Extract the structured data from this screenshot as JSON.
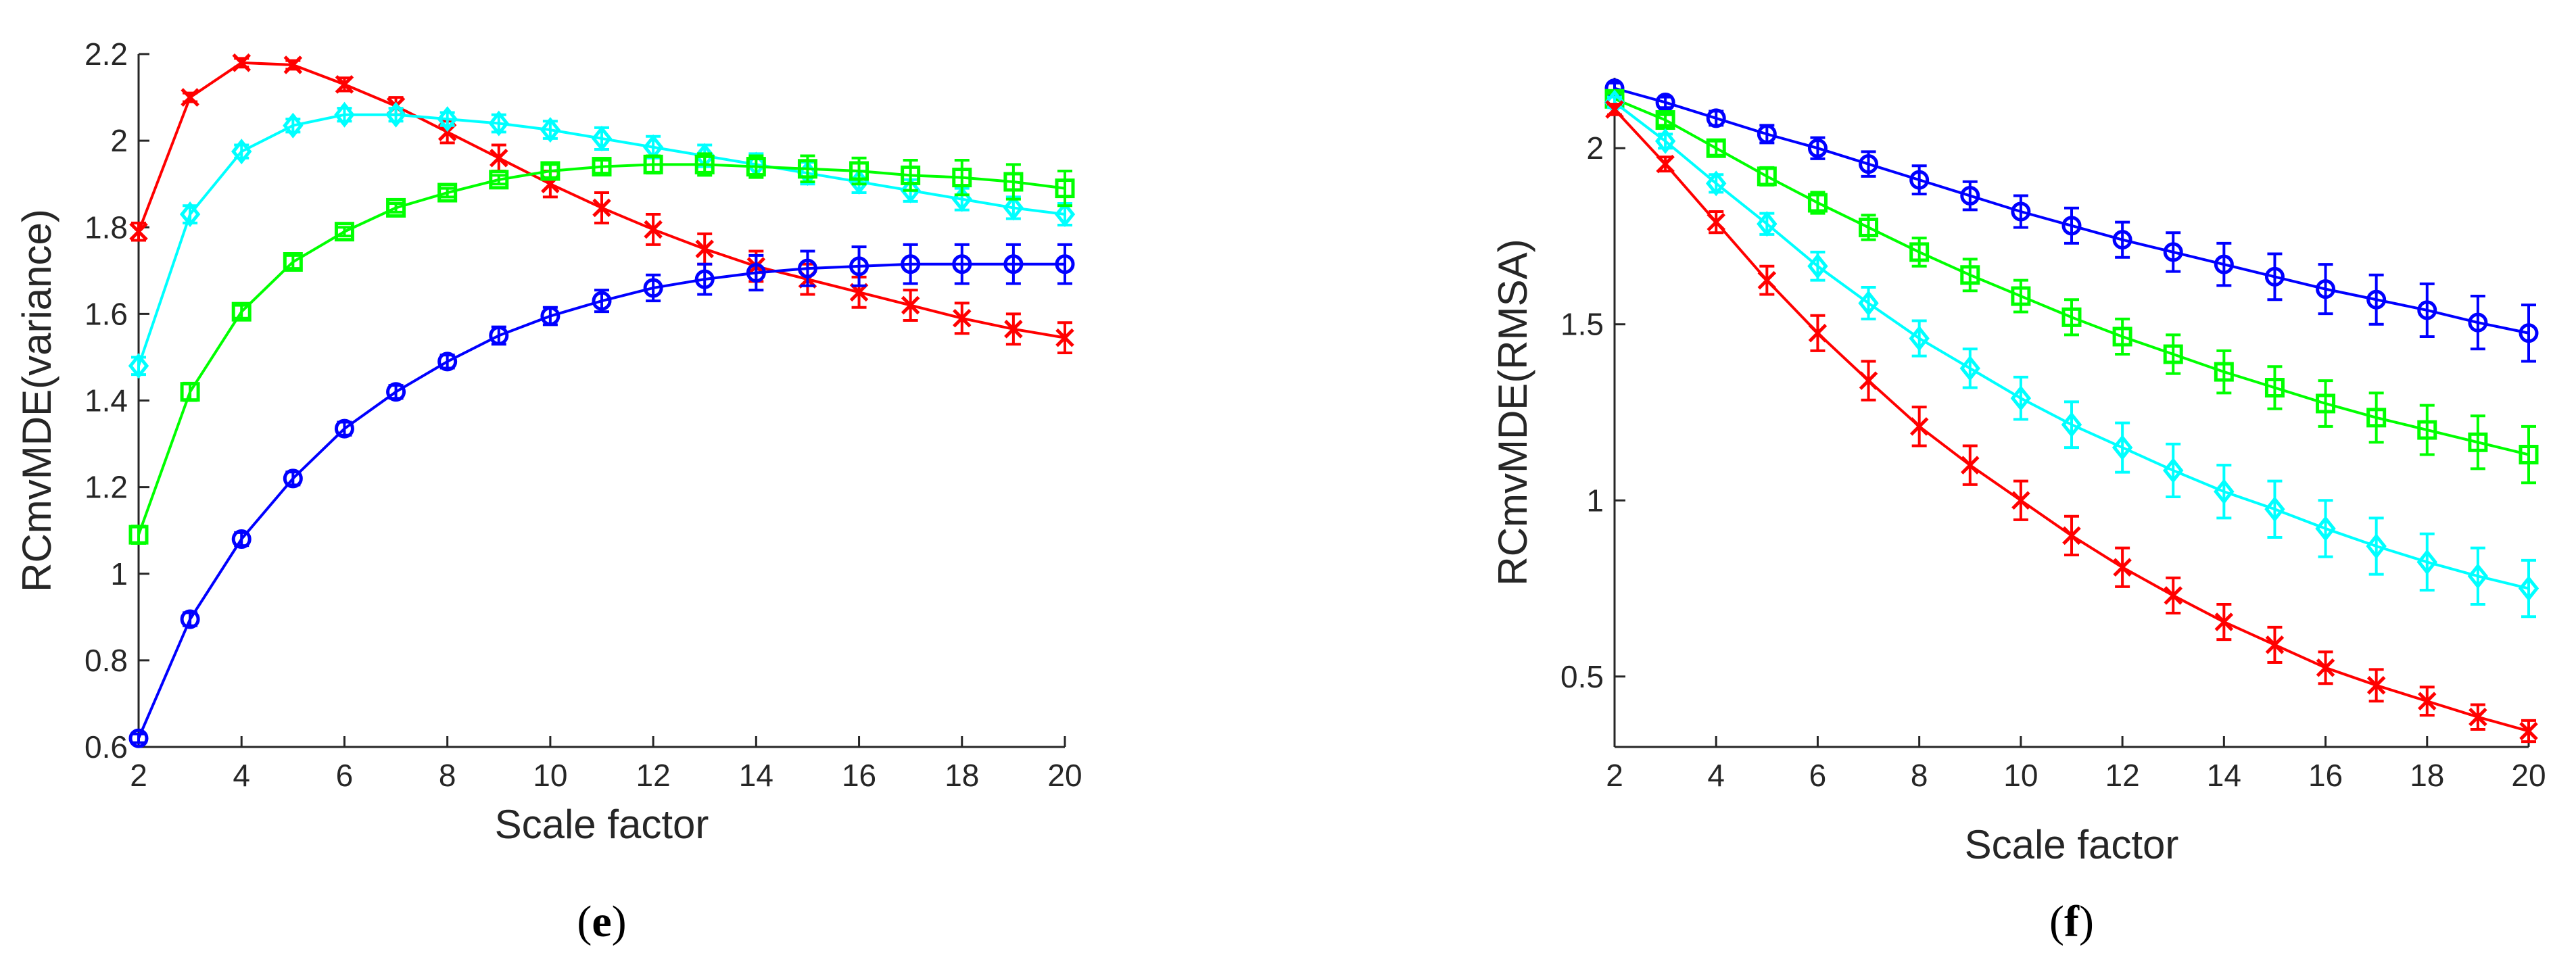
{
  "chart_data": [
    {
      "type": "line",
      "panel_label": "e",
      "xlabel": "Scale factor",
      "ylabel": "RCmvMDE(variance)",
      "xlim": [
        2,
        20
      ],
      "ylim": [
        0.6,
        2.2
      ],
      "xticks": [
        2,
        4,
        6,
        8,
        10,
        12,
        14,
        16,
        18,
        20
      ],
      "yticks": [
        0.6,
        0.8,
        1,
        1.2,
        1.4,
        1.6,
        1.8,
        2,
        2.2
      ],
      "grid": false,
      "legend": "none",
      "x": [
        2,
        3,
        4,
        5,
        6,
        7,
        8,
        9,
        10,
        11,
        12,
        13,
        14,
        15,
        16,
        17,
        18,
        19,
        20
      ],
      "series": [
        {
          "color": "#ff0000",
          "marker": "x",
          "values": [
            1.79,
            2.1,
            2.18,
            2.175,
            2.13,
            2.08,
            2.02,
            1.96,
            1.9,
            1.845,
            1.795,
            1.75,
            1.71,
            1.68,
            1.65,
            1.62,
            1.59,
            1.565,
            1.545
          ],
          "errors": [
            0.02,
            0.01,
            0.01,
            0.01,
            0.015,
            0.02,
            0.025,
            0.03,
            0.03,
            0.035,
            0.035,
            0.035,
            0.035,
            0.035,
            0.035,
            0.035,
            0.035,
            0.035,
            0.035
          ]
        },
        {
          "color": "#00ffff",
          "marker": "diamond",
          "values": [
            1.48,
            1.83,
            1.975,
            2.035,
            2.06,
            2.06,
            2.05,
            2.04,
            2.025,
            2.005,
            1.985,
            1.965,
            1.945,
            1.925,
            1.905,
            1.885,
            1.865,
            1.845,
            1.83
          ],
          "errors": [
            0.02,
            0.02,
            0.015,
            0.015,
            0.015,
            0.015,
            0.015,
            0.02,
            0.02,
            0.025,
            0.025,
            0.025,
            0.025,
            0.025,
            0.025,
            0.025,
            0.025,
            0.025,
            0.025
          ]
        },
        {
          "color": "#00ff00",
          "marker": "square",
          "values": [
            1.09,
            1.42,
            1.605,
            1.72,
            1.79,
            1.845,
            1.88,
            1.91,
            1.93,
            1.94,
            1.945,
            1.945,
            1.94,
            1.935,
            1.93,
            1.92,
            1.915,
            1.905,
            1.89
          ],
          "errors": [
            0.02,
            0.02,
            0.015,
            0.015,
            0.01,
            0.01,
            0.01,
            0.01,
            0.015,
            0.015,
            0.02,
            0.025,
            0.025,
            0.03,
            0.03,
            0.035,
            0.04,
            0.04,
            0.04
          ]
        },
        {
          "color": "#0000ff",
          "marker": "circle",
          "values": [
            0.62,
            0.895,
            1.08,
            1.22,
            1.335,
            1.42,
            1.49,
            1.55,
            1.595,
            1.63,
            1.66,
            1.68,
            1.695,
            1.705,
            1.71,
            1.715,
            1.715,
            1.715,
            1.715
          ],
          "errors": [
            0.01,
            0.015,
            0.015,
            0.015,
            0.015,
            0.015,
            0.015,
            0.02,
            0.02,
            0.025,
            0.03,
            0.035,
            0.04,
            0.04,
            0.045,
            0.045,
            0.045,
            0.045,
            0.045
          ]
        }
      ]
    },
    {
      "type": "line",
      "panel_label": "f",
      "xlabel": "Scale factor",
      "ylabel": "RCmvMDE(RMSA)",
      "xlim": [
        2,
        20
      ],
      "ylim": [
        0.3,
        2.2
      ],
      "xticks": [
        2,
        4,
        6,
        8,
        10,
        12,
        14,
        16,
        18,
        20
      ],
      "yticks": [
        0.5,
        1,
        1.5,
        2
      ],
      "grid": false,
      "legend": "none",
      "x": [
        2,
        3,
        4,
        5,
        6,
        7,
        8,
        9,
        10,
        11,
        12,
        13,
        14,
        15,
        16,
        17,
        18,
        19,
        20
      ],
      "series": [
        {
          "color": "#0000ff",
          "marker": "circle",
          "values": [
            2.17,
            2.13,
            2.085,
            2.04,
            2.0,
            1.955,
            1.91,
            1.865,
            1.82,
            1.78,
            1.74,
            1.705,
            1.67,
            1.635,
            1.6,
            1.57,
            1.54,
            1.505,
            1.475
          ],
          "errors": [
            0.015,
            0.015,
            0.02,
            0.025,
            0.03,
            0.035,
            0.04,
            0.04,
            0.045,
            0.05,
            0.05,
            0.055,
            0.06,
            0.065,
            0.07,
            0.07,
            0.075,
            0.075,
            0.08
          ]
        },
        {
          "color": "#00ff00",
          "marker": "square",
          "values": [
            2.14,
            2.08,
            2.0,
            1.92,
            1.845,
            1.775,
            1.705,
            1.64,
            1.58,
            1.52,
            1.465,
            1.415,
            1.365,
            1.32,
            1.275,
            1.235,
            1.2,
            1.165,
            1.13
          ],
          "errors": [
            0.015,
            0.015,
            0.02,
            0.025,
            0.03,
            0.035,
            0.04,
            0.045,
            0.045,
            0.05,
            0.05,
            0.055,
            0.06,
            0.06,
            0.065,
            0.07,
            0.07,
            0.075,
            0.08
          ]
        },
        {
          "color": "#00ffff",
          "marker": "diamond",
          "values": [
            2.13,
            2.02,
            1.9,
            1.785,
            1.665,
            1.56,
            1.46,
            1.375,
            1.29,
            1.215,
            1.15,
            1.085,
            1.025,
            0.975,
            0.92,
            0.87,
            0.825,
            0.785,
            0.75
          ],
          "errors": [
            0.015,
            0.02,
            0.025,
            0.03,
            0.04,
            0.045,
            0.05,
            0.055,
            0.06,
            0.065,
            0.07,
            0.075,
            0.075,
            0.08,
            0.08,
            0.08,
            0.08,
            0.08,
            0.08
          ]
        },
        {
          "color": "#ff0000",
          "marker": "x",
          "values": [
            2.11,
            1.955,
            1.79,
            1.625,
            1.475,
            1.34,
            1.21,
            1.1,
            1.0,
            0.9,
            0.81,
            0.73,
            0.655,
            0.59,
            0.525,
            0.475,
            0.43,
            0.385,
            0.345
          ],
          "errors": [
            0.015,
            0.02,
            0.03,
            0.04,
            0.05,
            0.055,
            0.055,
            0.055,
            0.055,
            0.055,
            0.055,
            0.05,
            0.05,
            0.05,
            0.045,
            0.045,
            0.04,
            0.035,
            0.03
          ]
        }
      ]
    }
  ]
}
